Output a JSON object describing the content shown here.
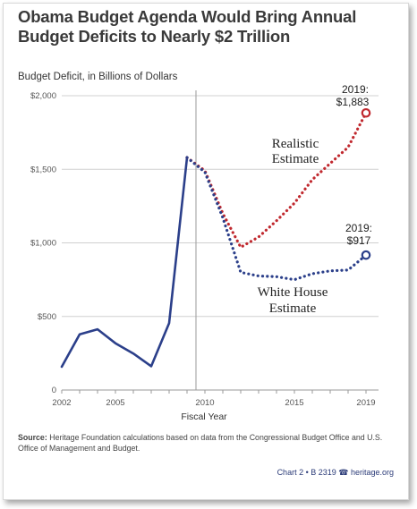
{
  "title": "Obama Budget Agenda Would Bring Annual Budget Deficits to Nearly $2 Trillion",
  "chart_data": {
    "type": "line",
    "ylabel": "Budget Deficit, in Billions of Dollars",
    "xlabel": "Fiscal Year",
    "xlim": [
      2002,
      2019
    ],
    "ylim": [
      0,
      2000
    ],
    "x_ticks": [
      "2002",
      "2005",
      "2010",
      "2015",
      "2019"
    ],
    "y_ticks": [
      "$2,000",
      "$1,500",
      "$1,000",
      "$500",
      "0"
    ],
    "grid": true,
    "series": [
      {
        "name": "",
        "style": "solid",
        "color": "#2b3f8a",
        "x": [
          2002,
          2003,
          2004,
          2005,
          2006,
          2007,
          2008,
          2009
        ],
        "y": [
          158,
          378,
          413,
          318,
          248,
          162,
          455,
          1580
        ]
      },
      {
        "name": "Realistic Estimate",
        "style": "dotted",
        "color": "#c0282e",
        "x": [
          2009,
          2010,
          2011,
          2012,
          2013,
          2014,
          2015,
          2016,
          2017,
          2018,
          2019
        ],
        "y": [
          1580,
          1490,
          1200,
          970,
          1040,
          1150,
          1270,
          1430,
          1540,
          1650,
          1883
        ]
      },
      {
        "name": "White House Estimate",
        "style": "dotted",
        "color": "#2b3f8a",
        "x": [
          2009,
          2010,
          2011,
          2012,
          2013,
          2014,
          2015,
          2016,
          2017,
          2018,
          2019
        ],
        "y": [
          1580,
          1480,
          1170,
          800,
          775,
          770,
          750,
          790,
          810,
          815,
          917
        ]
      }
    ],
    "annotations": [
      {
        "line1": "2019:",
        "line2": "$1,883"
      },
      {
        "line1": "2019:",
        "line2": "$917"
      }
    ]
  },
  "source": {
    "label": "Source:",
    "text": "Heritage Foundation calculations based on data from the Congressional Budget Office and U.S. Office of Management and Budget."
  },
  "credit": "Chart 2 • B 2319 ☎ heritage.org"
}
